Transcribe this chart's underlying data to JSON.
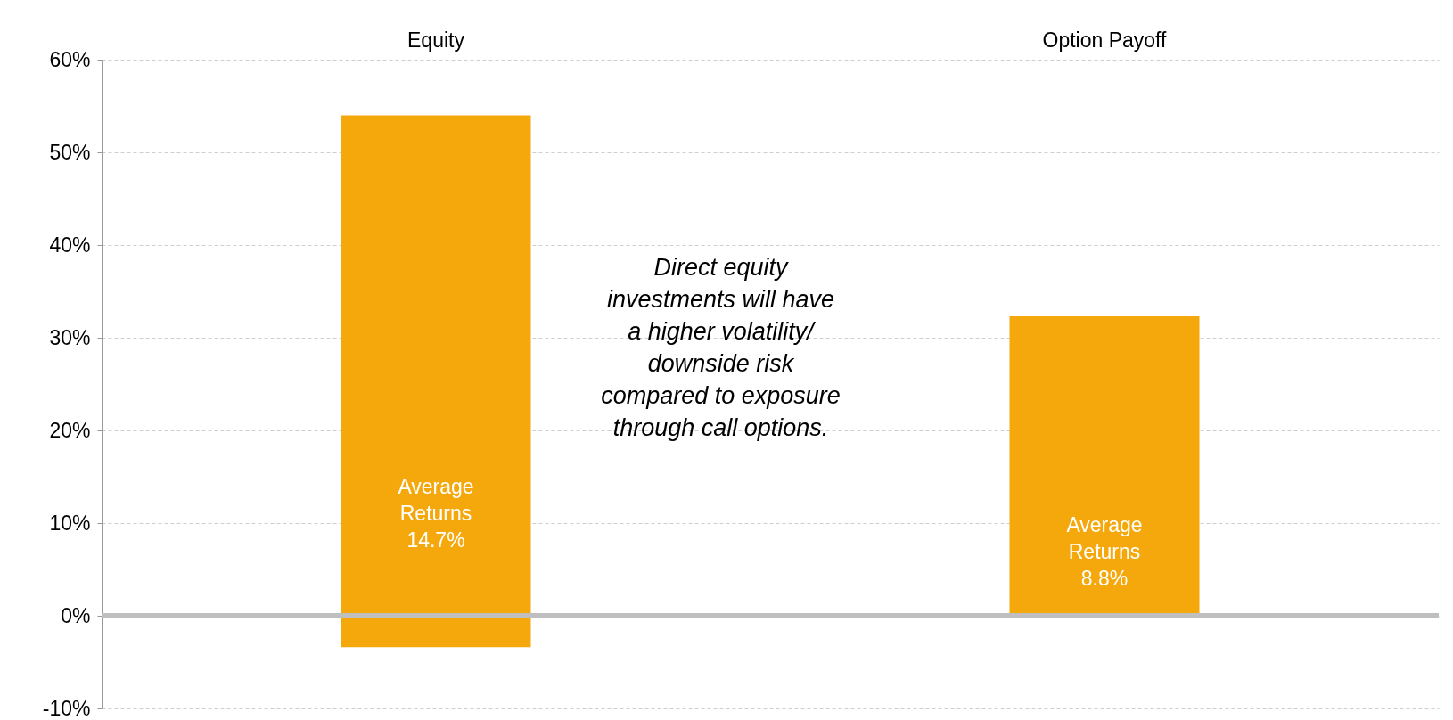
{
  "chart_data": {
    "type": "bar",
    "categories": [
      "Equity",
      "Option Payoff"
    ],
    "values": [
      57.4,
      32.3
    ],
    "base": [
      -3.4,
      0
    ],
    "color": "#f5a80b",
    "ylim": [
      -10,
      60
    ],
    "yticks": [
      {
        "value": -10,
        "label": "-10%"
      },
      {
        "value": 0,
        "label": "0%"
      },
      {
        "value": 10,
        "label": "10%"
      },
      {
        "value": 20,
        "label": "20%"
      },
      {
        "value": 30,
        "label": "30%"
      },
      {
        "value": 40,
        "label": "40%"
      },
      {
        "value": 50,
        "label": "50%"
      },
      {
        "value": 60,
        "label": "60%"
      }
    ],
    "grid": "y",
    "ref_lines": [
      {
        "axis": "y",
        "value": 0,
        "color": "#bfbfbf"
      }
    ],
    "annotations": [
      "Average Returns 14.7%",
      "Average Returns 8.8%",
      "Direct equity investments will have a higher volatility/ downside risk compared to exposure through call options."
    ]
  }
}
